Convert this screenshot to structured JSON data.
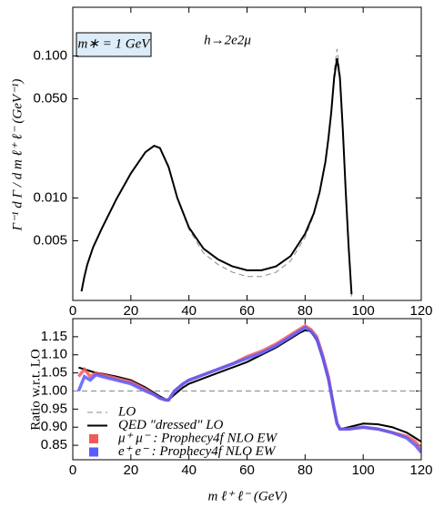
{
  "chart_data": [
    {
      "type": "line",
      "ylabel": "Γ⁻¹ d Γ / d m ℓ⁺ ℓ⁻  (GeV⁻¹)",
      "annotations": [
        "m∗ = 1 GeV",
        "h→2e2μ"
      ],
      "log_y": true,
      "xlim": [
        0,
        120
      ],
      "xticks": [
        0,
        20,
        40,
        60,
        80,
        100,
        120
      ],
      "ylim": [
        0.0019,
        0.22
      ],
      "yticks": [
        {
          "value": 0.005,
          "label": "0.005"
        },
        {
          "value": 0.01,
          "label": "0.010"
        },
        {
          "value": 0.05,
          "label": "0.050"
        },
        {
          "value": 0.1,
          "label": "0.100"
        }
      ],
      "x": [
        3,
        4,
        5,
        7,
        10,
        15,
        20,
        25,
        28,
        30,
        33,
        36,
        40,
        45,
        50,
        55,
        60,
        65,
        70,
        75,
        80,
        83,
        85,
        87,
        88,
        89,
        90,
        91,
        92,
        93,
        94,
        95,
        96
      ],
      "series": [
        {
          "color": "#888888",
          "dash": true,
          "values": [
            0.0022,
            0.0028,
            0.0034,
            0.0045,
            0.0061,
            0.0098,
            0.0149,
            0.021,
            0.0234,
            0.0226,
            0.0165,
            0.0099,
            0.006,
            0.0041,
            0.0034,
            0.003,
            0.0028,
            0.0028,
            0.003,
            0.0036,
            0.0053,
            0.0076,
            0.0108,
            0.018,
            0.0265,
            0.042,
            0.078,
            0.112,
            0.075,
            0.031,
            0.011,
            0.0044,
            0.002
          ]
        },
        {
          "color": "#000000",
          "dash": false,
          "values": [
            0.0022,
            0.0028,
            0.0034,
            0.0045,
            0.0061,
            0.0098,
            0.0149,
            0.021,
            0.0233,
            0.0225,
            0.0165,
            0.01,
            0.0062,
            0.0044,
            0.0037,
            0.0033,
            0.0031,
            0.0031,
            0.0033,
            0.0039,
            0.0056,
            0.0078,
            0.011,
            0.018,
            0.026,
            0.04,
            0.07,
            0.096,
            0.07,
            0.03,
            0.011,
            0.0045,
            0.0021
          ]
        }
      ]
    },
    {
      "type": "line",
      "xlabel": "m ℓ⁺ ℓ⁻  (GeV)",
      "ylabel": "Ratio w.r.t. LO",
      "xlim": [
        0,
        120
      ],
      "xticks": [
        0,
        20,
        40,
        60,
        80,
        100,
        120
      ],
      "ylim": [
        0.81,
        1.2
      ],
      "yticks": [
        0.85,
        {
          "value": 0.9,
          "label": "0.90"
        },
        0.95,
        {
          "value": 1.0,
          "label": "1.00"
        },
        1.05,
        {
          "value": 1.1,
          "label": "1.10"
        },
        1.15
      ],
      "x": [
        2,
        4,
        6,
        8,
        10,
        15,
        20,
        25,
        28,
        30,
        32,
        33,
        35,
        38,
        40,
        45,
        50,
        55,
        60,
        65,
        70,
        75,
        78,
        80,
        82,
        84,
        86,
        88,
        90,
        91,
        92,
        95,
        100,
        105,
        110,
        115,
        118,
        120
      ],
      "series": [
        {
          "name": "LO",
          "color": "#888888",
          "dash": true,
          "x": [
            0,
            120
          ],
          "values": [
            1,
            1
          ]
        },
        {
          "name": "QED \"dressed\" LO",
          "color": "#000000",
          "dash": false,
          "values": [
            1.065,
            1.06,
            1.055,
            1.05,
            1.048,
            1.04,
            1.03,
            1.01,
            0.995,
            0.985,
            0.977,
            0.975,
            0.99,
            1.01,
            1.02,
            1.035,
            1.05,
            1.065,
            1.08,
            1.1,
            1.12,
            1.145,
            1.16,
            1.168,
            1.165,
            1.14,
            1.09,
            1.03,
            0.95,
            0.91,
            0.895,
            0.9,
            0.91,
            0.908,
            0.9,
            0.885,
            0.87,
            0.86
          ]
        },
        {
          "name": "μ⁺ μ⁻ : Prophecy4f NLO EW",
          "color": "#f05a5a",
          "dash": false,
          "values": [
            1.04,
            1.06,
            1.04,
            1.05,
            1.045,
            1.035,
            1.025,
            1.005,
            0.99,
            0.98,
            0.975,
            0.975,
            1.0,
            1.02,
            1.03,
            1.045,
            1.06,
            1.075,
            1.095,
            1.11,
            1.13,
            1.155,
            1.17,
            1.18,
            1.17,
            1.15,
            1.1,
            1.04,
            0.95,
            0.91,
            0.895,
            0.895,
            0.9,
            0.895,
            0.885,
            0.875,
            0.86,
            0.84
          ]
        },
        {
          "name": "e⁺ e⁻ : Prophecy4f NLO EW",
          "color": "#5a5aff",
          "dash": false,
          "values": [
            1.0,
            1.04,
            1.03,
            1.045,
            1.04,
            1.03,
            1.02,
            1.0,
            0.99,
            0.98,
            0.975,
            0.975,
            1.0,
            1.02,
            1.03,
            1.045,
            1.06,
            1.075,
            1.09,
            1.105,
            1.125,
            1.15,
            1.165,
            1.175,
            1.165,
            1.145,
            1.095,
            1.035,
            0.95,
            0.91,
            0.895,
            0.895,
            0.9,
            0.895,
            0.885,
            0.87,
            0.85,
            0.83
          ]
        }
      ]
    }
  ]
}
